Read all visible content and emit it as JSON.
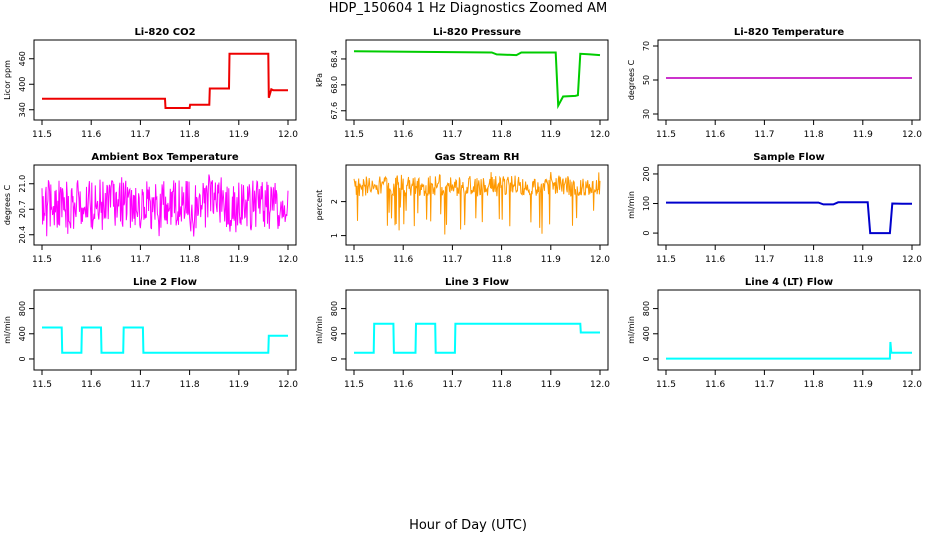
{
  "page": {
    "title": "HDP_150604  1 Hz Diagnostics Zoomed AM",
    "xlabel": "Hour of Day (UTC)"
  },
  "chart_data": [
    {
      "type": "line",
      "title": "Li-820 CO2",
      "ylabel": "Licor ppm",
      "xlim": [
        11.5,
        12.0
      ],
      "ylim": [
        330,
        490
      ],
      "xticks": [
        11.5,
        11.6,
        11.7,
        11.8,
        11.9,
        12.0
      ],
      "yticks": [
        340,
        400,
        460
      ],
      "color": "#ee0000",
      "series": [
        {
          "x": [
            11.5,
            11.75,
            11.751,
            11.8,
            11.801,
            11.84,
            11.841,
            11.88,
            11.881,
            11.96,
            11.961,
            11.966,
            11.97,
            12.0
          ],
          "y": [
            366,
            366,
            344,
            344,
            352,
            352,
            390,
            390,
            472,
            472,
            368,
            388,
            386,
            386
          ]
        }
      ]
    },
    {
      "type": "line",
      "title": "Li-820 Pressure",
      "ylabel": "kPa",
      "xlim": [
        11.5,
        12.0
      ],
      "ylim": [
        67.55,
        68.6
      ],
      "xticks": [
        11.5,
        11.6,
        11.7,
        11.8,
        11.9,
        12.0
      ],
      "yticks": [
        67.6,
        68.0,
        68.4
      ],
      "color": "#00cc00",
      "series": [
        {
          "x": [
            11.5,
            11.78,
            11.79,
            11.83,
            11.84,
            11.91,
            11.915,
            11.925,
            11.95,
            11.955,
            11.96,
            11.98,
            12.0
          ],
          "y": [
            68.52,
            68.5,
            68.47,
            68.46,
            68.5,
            68.5,
            67.68,
            67.82,
            67.83,
            67.84,
            68.48,
            68.47,
            68.46
          ]
        }
      ]
    },
    {
      "type": "line",
      "title": "Li-820 Temperature",
      "ylabel": "degrees C",
      "xlim": [
        11.5,
        12.0
      ],
      "ylim": [
        30,
        70
      ],
      "xticks": [
        11.5,
        11.6,
        11.7,
        11.8,
        11.9,
        12.0
      ],
      "yticks": [
        30,
        50,
        70
      ],
      "color": "#cc33cc",
      "series": [
        {
          "x": [
            11.5,
            12.0
          ],
          "y": [
            51.2,
            51.2
          ]
        }
      ]
    },
    {
      "type": "line",
      "title": "Ambient Box Temperature",
      "ylabel": "degrees C",
      "xlim": [
        11.5,
        12.0
      ],
      "ylim": [
        20.35,
        21.15
      ],
      "xticks": [
        11.5,
        11.6,
        11.7,
        11.8,
        11.9,
        12.0
      ],
      "yticks": [
        20.4,
        20.7,
        21.0
      ],
      "color": "#ff00ff",
      "series": [
        {
          "x": [
            11.5,
            12.0
          ],
          "y": [
            20.78,
            20.78
          ],
          "noise_range": [
            20.45,
            21.05
          ]
        }
      ]
    },
    {
      "type": "line",
      "title": "Gas Stream RH",
      "ylabel": "percent",
      "xlim": [
        11.5,
        12.0
      ],
      "ylim": [
        0.9,
        2.9
      ],
      "xticks": [
        11.5,
        11.6,
        11.7,
        11.8,
        11.9,
        12.0
      ],
      "yticks": [
        1.0,
        2.0
      ],
      "color": "#ff9900",
      "series": [
        {
          "x": [
            11.5,
            12.0
          ],
          "y": [
            2.45,
            2.45
          ],
          "noise_range": [
            2.15,
            2.75
          ]
        }
      ]
    },
    {
      "type": "line",
      "title": "Sample Flow",
      "ylabel": "ml/min",
      "xlim": [
        11.5,
        12.0
      ],
      "ylim": [
        -20,
        210
      ],
      "xticks": [
        11.5,
        11.6,
        11.7,
        11.8,
        11.9,
        12.0
      ],
      "yticks": [
        0,
        100,
        200
      ],
      "color": "#0000cc",
      "series": [
        {
          "x": [
            11.5,
            11.81,
            11.82,
            11.84,
            11.85,
            11.91,
            11.915,
            11.955,
            11.96,
            11.98,
            12.0
          ],
          "y": [
            103,
            103,
            97,
            97,
            104,
            104,
            0,
            0,
            100,
            99,
            99
          ]
        }
      ]
    },
    {
      "type": "line",
      "title": "Line 2 Flow",
      "ylabel": "ml/min",
      "xlim": [
        11.5,
        12.0
      ],
      "ylim": [
        -80,
        1000
      ],
      "xticks": [
        11.5,
        11.6,
        11.7,
        11.8,
        11.9,
        12.0
      ],
      "yticks": [
        0,
        400,
        800
      ],
      "color": "#00ffff",
      "series": [
        {
          "x": [
            11.5,
            11.54,
            11.541,
            11.58,
            11.581,
            11.62,
            11.621,
            11.665,
            11.666,
            11.705,
            11.706,
            11.96,
            11.961,
            12.0
          ],
          "y": [
            500,
            500,
            100,
            100,
            500,
            500,
            100,
            100,
            500,
            500,
            100,
            100,
            370,
            370
          ]
        }
      ]
    },
    {
      "type": "line",
      "title": "Line 3 Flow",
      "ylabel": "ml/min",
      "xlim": [
        11.5,
        12.0
      ],
      "ylim": [
        -80,
        1000
      ],
      "xticks": [
        11.5,
        11.6,
        11.7,
        11.8,
        11.9,
        12.0
      ],
      "yticks": [
        0,
        400,
        800
      ],
      "color": "#00ffff",
      "series": [
        {
          "x": [
            11.5,
            11.54,
            11.541,
            11.58,
            11.581,
            11.625,
            11.626,
            11.665,
            11.666,
            11.705,
            11.706,
            11.96,
            11.961,
            12.0
          ],
          "y": [
            100,
            100,
            560,
            560,
            100,
            100,
            560,
            560,
            100,
            100,
            560,
            560,
            420,
            420
          ]
        }
      ]
    },
    {
      "type": "line",
      "title": "Line 4 (LT) Flow",
      "ylabel": "ml/min",
      "xlim": [
        11.5,
        12.0
      ],
      "ylim": [
        -80,
        1000
      ],
      "xticks": [
        11.5,
        11.6,
        11.7,
        11.8,
        11.9,
        12.0
      ],
      "yticks": [
        0,
        400,
        800
      ],
      "color": "#00ffff",
      "series": [
        {
          "x": [
            11.5,
            11.955,
            11.956,
            11.958,
            11.96,
            12.0
          ],
          "y": [
            5,
            5,
            270,
            100,
            100,
            100
          ]
        }
      ]
    }
  ]
}
